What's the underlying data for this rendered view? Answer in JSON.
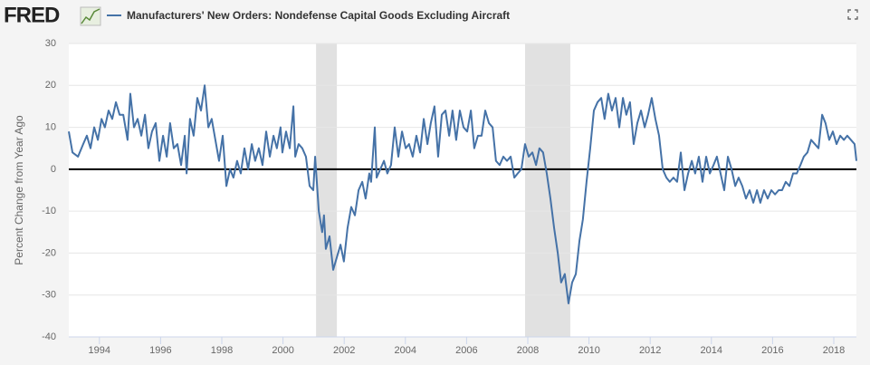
{
  "logo": "FRED",
  "chart_data": {
    "type": "line",
    "y_label": "Percent Change from Year Ago",
    "x": [
      1993.0,
      1993.12,
      1993.3,
      1993.47,
      1993.59,
      1993.71,
      1993.83,
      1993.95,
      1994.07,
      1994.18,
      1994.3,
      1994.42,
      1994.54,
      1994.66,
      1994.78,
      1994.92,
      1995.01,
      1995.13,
      1995.25,
      1995.37,
      1995.49,
      1995.6,
      1995.72,
      1995.84,
      1995.96,
      1996.08,
      1996.2,
      1996.31,
      1996.43,
      1996.55,
      1996.67,
      1996.79,
      1996.85,
      1996.96,
      1997.08,
      1997.2,
      1997.32,
      1997.44,
      1997.56,
      1997.67,
      1997.79,
      1997.91,
      1998.03,
      1998.15,
      1998.27,
      1998.38,
      1998.5,
      1998.62,
      1998.74,
      1998.86,
      1998.98,
      1999.09,
      1999.21,
      1999.33,
      1999.45,
      1999.57,
      1999.69,
      1999.8,
      1999.92,
      1999.98,
      2000.1,
      2000.22,
      2000.34,
      2000.4,
      2000.51,
      2000.63,
      2000.75,
      2000.87,
      2000.99,
      2001.05,
      2001.17,
      2001.28,
      2001.34,
      2001.4,
      2001.52,
      2001.64,
      2001.76,
      2001.88,
      2001.99,
      2002.11,
      2002.23,
      2002.35,
      2002.47,
      2002.59,
      2002.7,
      2002.82,
      2002.88,
      2003.0,
      2003.06,
      2003.18,
      2003.3,
      2003.41,
      2003.53,
      2003.65,
      2003.77,
      2003.89,
      2004.01,
      2004.12,
      2004.24,
      2004.36,
      2004.48,
      2004.6,
      2004.72,
      2004.83,
      2004.95,
      2005.07,
      2005.19,
      2005.31,
      2005.43,
      2005.54,
      2005.66,
      2005.78,
      2005.9,
      2006.02,
      2006.14,
      2006.25,
      2006.37,
      2006.49,
      2006.61,
      2006.73,
      2006.85,
      2006.96,
      2007.08,
      2007.2,
      2007.32,
      2007.44,
      2007.56,
      2007.67,
      2007.79,
      2007.91,
      2008.03,
      2008.15,
      2008.27,
      2008.38,
      2008.5,
      2008.62,
      2008.74,
      2008.86,
      2008.98,
      2009.09,
      2009.21,
      2009.33,
      2009.45,
      2009.57,
      2009.69,
      2009.8,
      2009.92,
      2010.04,
      2010.16,
      2010.28,
      2010.4,
      2010.51,
      2010.63,
      2010.75,
      2010.87,
      2010.99,
      2011.11,
      2011.22,
      2011.34,
      2011.46,
      2011.58,
      2011.7,
      2011.82,
      2011.93,
      2012.05,
      2012.17,
      2012.29,
      2012.41,
      2012.53,
      2012.64,
      2012.76,
      2012.88,
      2013.0,
      2013.12,
      2013.24,
      2013.36,
      2013.47,
      2013.59,
      2013.71,
      2013.83,
      2013.95,
      2014.07,
      2014.18,
      2014.3,
      2014.42,
      2014.54,
      2014.66,
      2014.78,
      2014.89,
      2015.01,
      2015.13,
      2015.25,
      2015.37,
      2015.49,
      2015.6,
      2015.72,
      2015.84,
      2015.96,
      2016.08,
      2016.2,
      2016.31,
      2016.43,
      2016.55,
      2016.67,
      2016.79,
      2016.91,
      2017.02,
      2017.14,
      2017.26,
      2017.38,
      2017.5,
      2017.62,
      2017.73,
      2017.85,
      2017.97,
      2018.09,
      2018.21,
      2018.33,
      2018.44,
      2018.56,
      2018.68,
      2018.74
    ],
    "series": [
      {
        "name": "Manufacturers' New Orders: Nondefense Capital Goods Excluding Aircraft",
        "color": "#4572a7",
        "values": [
          9,
          4,
          3,
          6,
          8,
          5,
          10,
          7,
          12,
          10,
          14,
          12,
          16,
          13,
          13,
          7,
          18,
          10,
          12,
          8,
          13,
          5,
          9,
          11,
          2,
          8,
          3,
          11,
          5,
          6,
          1,
          8,
          -1,
          12,
          8,
          17,
          14,
          20,
          10,
          12,
          7,
          2,
          8,
          -4,
          0,
          -2,
          2,
          -1,
          5,
          0,
          6,
          2,
          5,
          1,
          9,
          3,
          8,
          5,
          10,
          4,
          9,
          5,
          15,
          3,
          6,
          5,
          3,
          -4,
          -5,
          3,
          -10,
          -15,
          -11,
          -19,
          -16,
          -24,
          -21,
          -18,
          -22,
          -14,
          -9,
          -11,
          -5,
          -3,
          -7,
          -1,
          -3,
          10,
          -2,
          0,
          2,
          -1,
          1,
          10,
          3,
          9,
          5,
          6,
          3,
          8,
          4,
          12,
          6,
          11,
          15,
          3,
          13,
          14,
          8,
          14,
          7,
          14,
          10,
          9,
          14,
          5,
          8,
          8,
          14,
          11,
          10,
          2,
          1,
          3,
          2,
          3,
          -2,
          -1,
          0,
          6,
          3,
          4,
          1,
          5,
          4,
          -1,
          -7,
          -14,
          -20,
          -27,
          -25,
          -32,
          -27,
          -25,
          -17,
          -12,
          -3,
          5,
          14,
          16,
          17,
          12,
          18,
          14,
          17,
          10,
          17,
          13,
          16,
          6,
          11,
          14,
          10,
          13,
          17,
          12,
          8,
          0,
          -2,
          -3,
          -2,
          -3,
          4,
          -5,
          -1,
          2,
          -1,
          3,
          -3,
          3,
          -1,
          1,
          3,
          -1,
          -5,
          3,
          0,
          -4,
          -2,
          -4,
          -7,
          -5,
          -8,
          -5,
          -8,
          -5,
          -7,
          -5,
          -6,
          -5,
          -5,
          -3,
          -4,
          -1,
          -1,
          1,
          3,
          4,
          7,
          6,
          5,
          13,
          11,
          7,
          9,
          6,
          8,
          7,
          8,
          7,
          6,
          2
        ]
      }
    ],
    "recessions": [
      [
        2001.08,
        2001.76
      ],
      [
        2007.91,
        2009.39
      ]
    ],
    "xlim": [
      1993.0,
      2018.74
    ],
    "xticks": [
      1994,
      1996,
      1998,
      2000,
      2002,
      2004,
      2006,
      2008,
      2010,
      2012,
      2014,
      2016,
      2018
    ],
    "ylim": [
      -40,
      30
    ],
    "yticks": [
      -40,
      -30,
      -20,
      -10,
      0,
      10,
      20,
      30
    ],
    "grid": true,
    "zero_line": true
  }
}
